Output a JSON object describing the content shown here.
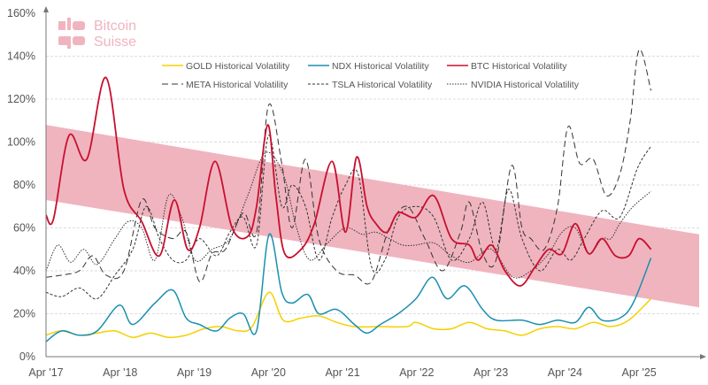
{
  "logo": {
    "line1": "Bitcoin",
    "line2": "Suisse",
    "color": "#f0b4bf"
  },
  "chart_data": {
    "type": "line",
    "title": "",
    "xlabel": "",
    "ylabel": "",
    "xlim": [
      2017.25,
      2026.06
    ],
    "ylim": [
      0,
      160
    ],
    "y_ticks": [
      0,
      20,
      40,
      60,
      80,
      100,
      120,
      140,
      160
    ],
    "y_tick_labels": [
      "0%",
      "20%",
      "40%",
      "60%",
      "80%",
      "100%",
      "120%",
      "140%",
      "160%"
    ],
    "x_ticks": [
      2017.25,
      2018.25,
      2019.25,
      2020.25,
      2021.25,
      2022.25,
      2023.25,
      2024.25,
      2025.25
    ],
    "x_tick_labels": [
      "Apr '17",
      "Apr '18",
      "Apr '19",
      "Apr '20",
      "Apr '21",
      "Apr '22",
      "Apr '23",
      "Apr '24",
      "Apr '25"
    ],
    "grid": "horizontal dashed",
    "legend": "top-right",
    "band": {
      "color": "#f0b4bf",
      "upper": [
        [
          2017.25,
          108
        ],
        [
          2026.06,
          57
        ]
      ],
      "lower": [
        [
          2017.25,
          73
        ],
        [
          2026.06,
          23
        ]
      ]
    },
    "series": [
      {
        "name": "GOLD Historical Volatility",
        "color": "#f5d000",
        "dash": "solid",
        "points": [
          [
            2017.25,
            10
          ],
          [
            2017.46,
            12
          ],
          [
            2017.7,
            10
          ],
          [
            2017.94,
            11
          ],
          [
            2018.18,
            12
          ],
          [
            2018.42,
            9
          ],
          [
            2018.66,
            11
          ],
          [
            2018.9,
            9
          ],
          [
            2019.14,
            10
          ],
          [
            2019.38,
            13
          ],
          [
            2019.61,
            14
          ],
          [
            2019.85,
            12
          ],
          [
            2020.03,
            14
          ],
          [
            2020.26,
            30
          ],
          [
            2020.45,
            17
          ],
          [
            2020.69,
            18
          ],
          [
            2020.93,
            19
          ],
          [
            2021.17,
            16
          ],
          [
            2021.41,
            14
          ],
          [
            2021.76,
            14
          ],
          [
            2022.12,
            14
          ],
          [
            2022.24,
            16
          ],
          [
            2022.48,
            13
          ],
          [
            2022.72,
            13
          ],
          [
            2022.96,
            16
          ],
          [
            2023.2,
            13
          ],
          [
            2023.44,
            12
          ],
          [
            2023.67,
            10
          ],
          [
            2023.91,
            13
          ],
          [
            2024.15,
            14
          ],
          [
            2024.39,
            13
          ],
          [
            2024.63,
            16
          ],
          [
            2024.87,
            14
          ],
          [
            2025.11,
            17
          ],
          [
            2025.41,
            27
          ]
        ]
      },
      {
        "name": "NDX Historical Volatility",
        "color": "#1a8fb0",
        "dash": "solid",
        "points": [
          [
            2017.25,
            7
          ],
          [
            2017.46,
            12
          ],
          [
            2017.7,
            10
          ],
          [
            2017.94,
            12
          ],
          [
            2018.24,
            24
          ],
          [
            2018.42,
            15
          ],
          [
            2018.72,
            25
          ],
          [
            2018.96,
            31
          ],
          [
            2019.14,
            18
          ],
          [
            2019.32,
            15
          ],
          [
            2019.55,
            12
          ],
          [
            2019.73,
            18
          ],
          [
            2019.91,
            20
          ],
          [
            2020.09,
            12
          ],
          [
            2020.26,
            57
          ],
          [
            2020.43,
            30
          ],
          [
            2020.57,
            25
          ],
          [
            2020.78,
            29
          ],
          [
            2020.93,
            20
          ],
          [
            2021.17,
            22
          ],
          [
            2021.41,
            15
          ],
          [
            2021.58,
            11
          ],
          [
            2021.76,
            15
          ],
          [
            2022.0,
            20
          ],
          [
            2022.24,
            27
          ],
          [
            2022.46,
            37
          ],
          [
            2022.66,
            27
          ],
          [
            2022.9,
            33
          ],
          [
            2023.14,
            22
          ],
          [
            2023.32,
            17
          ],
          [
            2023.67,
            17
          ],
          [
            2023.91,
            15
          ],
          [
            2024.15,
            17
          ],
          [
            2024.39,
            16
          ],
          [
            2024.57,
            23
          ],
          [
            2024.75,
            17
          ],
          [
            2024.99,
            18
          ],
          [
            2025.17,
            25
          ],
          [
            2025.41,
            46
          ]
        ]
      },
      {
        "name": "BTC Historical Volatility",
        "color": "#c8102e",
        "dash": "solid",
        "points": [
          [
            2017.25,
            66
          ],
          [
            2017.35,
            64
          ],
          [
            2017.56,
            103
          ],
          [
            2017.8,
            92
          ],
          [
            2018.06,
            130
          ],
          [
            2018.3,
            78
          ],
          [
            2018.54,
            63
          ],
          [
            2018.78,
            47
          ],
          [
            2018.98,
            73
          ],
          [
            2019.16,
            50
          ],
          [
            2019.32,
            60
          ],
          [
            2019.53,
            91
          ],
          [
            2019.76,
            60
          ],
          [
            2019.97,
            56
          ],
          [
            2020.09,
            70
          ],
          [
            2020.24,
            108
          ],
          [
            2020.35,
            75
          ],
          [
            2020.47,
            48
          ],
          [
            2020.69,
            50
          ],
          [
            2020.87,
            62
          ],
          [
            2021.11,
            91
          ],
          [
            2021.29,
            58
          ],
          [
            2021.44,
            93
          ],
          [
            2021.58,
            70
          ],
          [
            2021.7,
            62
          ],
          [
            2021.85,
            58
          ],
          [
            2022.0,
            67
          ],
          [
            2022.24,
            65
          ],
          [
            2022.48,
            75
          ],
          [
            2022.72,
            55
          ],
          [
            2022.96,
            52
          ],
          [
            2023.08,
            45
          ],
          [
            2023.26,
            52
          ],
          [
            2023.44,
            40
          ],
          [
            2023.65,
            33
          ],
          [
            2023.85,
            42
          ],
          [
            2024.03,
            50
          ],
          [
            2024.21,
            48
          ],
          [
            2024.39,
            62
          ],
          [
            2024.57,
            48
          ],
          [
            2024.75,
            55
          ],
          [
            2024.93,
            47
          ],
          [
            2025.11,
            47
          ],
          [
            2025.25,
            55
          ],
          [
            2025.41,
            50
          ]
        ]
      },
      {
        "name": "META Historical Volatility",
        "color": "#333333",
        "dash": "longdash",
        "points": [
          [
            2017.25,
            37
          ],
          [
            2017.46,
            38
          ],
          [
            2017.7,
            40
          ],
          [
            2017.88,
            47
          ],
          [
            2018.06,
            38
          ],
          [
            2018.3,
            40
          ],
          [
            2018.54,
            73
          ],
          [
            2018.72,
            60
          ],
          [
            2018.96,
            55
          ],
          [
            2019.14,
            58
          ],
          [
            2019.32,
            35
          ],
          [
            2019.49,
            48
          ],
          [
            2019.67,
            50
          ],
          [
            2019.91,
            67
          ],
          [
            2020.09,
            58
          ],
          [
            2020.25,
            117
          ],
          [
            2020.43,
            90
          ],
          [
            2020.57,
            60
          ],
          [
            2020.75,
            92
          ],
          [
            2020.93,
            55
          ],
          [
            2021.17,
            40
          ],
          [
            2021.41,
            38
          ],
          [
            2021.64,
            35
          ],
          [
            2021.88,
            60
          ],
          [
            2022.12,
            70
          ],
          [
            2022.36,
            55
          ],
          [
            2022.6,
            40
          ],
          [
            2022.84,
            58
          ],
          [
            2022.96,
            72
          ],
          [
            2023.14,
            48
          ],
          [
            2023.32,
            45
          ],
          [
            2023.53,
            89
          ],
          [
            2023.67,
            60
          ],
          [
            2023.79,
            55
          ],
          [
            2023.97,
            50
          ],
          [
            2024.15,
            70
          ],
          [
            2024.29,
            107
          ],
          [
            2024.45,
            90
          ],
          [
            2024.63,
            92
          ],
          [
            2024.81,
            75
          ],
          [
            2024.99,
            85
          ],
          [
            2025.13,
            110
          ],
          [
            2025.25,
            143
          ],
          [
            2025.41,
            124
          ]
        ]
      },
      {
        "name": "TSLA Historical Volatility",
        "color": "#333333",
        "dash": "shortdash",
        "points": [
          [
            2017.25,
            30
          ],
          [
            2017.46,
            28
          ],
          [
            2017.7,
            32
          ],
          [
            2017.94,
            27
          ],
          [
            2018.18,
            38
          ],
          [
            2018.42,
            50
          ],
          [
            2018.6,
            70
          ],
          [
            2018.78,
            55
          ],
          [
            2018.96,
            45
          ],
          [
            2019.14,
            45
          ],
          [
            2019.32,
            55
          ],
          [
            2019.55,
            47
          ],
          [
            2019.73,
            58
          ],
          [
            2019.91,
            65
          ],
          [
            2020.09,
            52
          ],
          [
            2020.25,
            103
          ],
          [
            2020.43,
            70
          ],
          [
            2020.57,
            80
          ],
          [
            2020.75,
            70
          ],
          [
            2020.93,
            45
          ],
          [
            2021.11,
            65
          ],
          [
            2021.29,
            80
          ],
          [
            2021.46,
            85
          ],
          [
            2021.64,
            42
          ],
          [
            2021.82,
            45
          ],
          [
            2022.0,
            65
          ],
          [
            2022.24,
            70
          ],
          [
            2022.48,
            65
          ],
          [
            2022.72,
            45
          ],
          [
            2022.96,
            55
          ],
          [
            2023.14,
            72
          ],
          [
            2023.32,
            50
          ],
          [
            2023.49,
            78
          ],
          [
            2023.67,
            55
          ],
          [
            2023.91,
            40
          ],
          [
            2024.15,
            50
          ],
          [
            2024.33,
            45
          ],
          [
            2024.51,
            55
          ],
          [
            2024.75,
            68
          ],
          [
            2024.99,
            65
          ],
          [
            2025.23,
            88
          ],
          [
            2025.41,
            98
          ]
        ]
      },
      {
        "name": "NVIDIA Historical Volatility",
        "color": "#333333",
        "dash": "dotted",
        "points": [
          [
            2017.25,
            40
          ],
          [
            2017.41,
            52
          ],
          [
            2017.58,
            44
          ],
          [
            2017.76,
            50
          ],
          [
            2017.94,
            43
          ],
          [
            2018.18,
            55
          ],
          [
            2018.36,
            63
          ],
          [
            2018.54,
            60
          ],
          [
            2018.72,
            45
          ],
          [
            2018.9,
            75
          ],
          [
            2019.08,
            65
          ],
          [
            2019.26,
            45
          ],
          [
            2019.49,
            50
          ],
          [
            2019.73,
            55
          ],
          [
            2019.97,
            75
          ],
          [
            2020.21,
            95
          ],
          [
            2020.45,
            85
          ],
          [
            2020.63,
            60
          ],
          [
            2020.81,
            45
          ],
          [
            2021.05,
            53
          ],
          [
            2021.29,
            60
          ],
          [
            2021.52,
            57
          ],
          [
            2021.7,
            58
          ],
          [
            2021.88,
            55
          ],
          [
            2022.06,
            52
          ],
          [
            2022.24,
            52
          ],
          [
            2022.48,
            53
          ],
          [
            2022.72,
            47
          ],
          [
            2022.96,
            44
          ],
          [
            2023.2,
            50
          ],
          [
            2023.32,
            48
          ],
          [
            2023.55,
            37
          ],
          [
            2023.79,
            40
          ],
          [
            2024.03,
            48
          ],
          [
            2024.21,
            58
          ],
          [
            2024.39,
            60
          ],
          [
            2024.57,
            48
          ],
          [
            2024.75,
            55
          ],
          [
            2024.87,
            55
          ],
          [
            2024.99,
            62
          ],
          [
            2025.17,
            70
          ],
          [
            2025.41,
            77
          ]
        ]
      }
    ]
  }
}
